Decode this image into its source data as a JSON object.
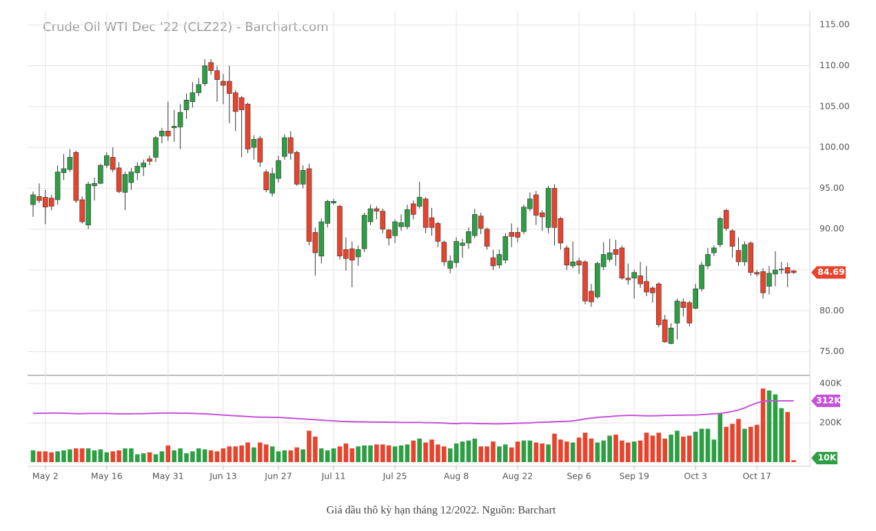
{
  "chart_data": {
    "type": "candlestick",
    "title": "Crude Oil WTI Dec '22 (CLZ22) - Barchart.com",
    "caption": "Giá dầu thô kỳ hạn tháng 12/2022. Nguồn: Barchart",
    "categories": [
      null,
      null,
      "May 2",
      null,
      null,
      null,
      null,
      null,
      null,
      null,
      null,
      null,
      "May 16",
      null,
      null,
      null,
      null,
      null,
      null,
      null,
      null,
      null,
      "May 31",
      null,
      null,
      null,
      null,
      null,
      null,
      null,
      null,
      "Jun 13",
      null,
      null,
      null,
      null,
      null,
      null,
      null,
      null,
      "Jun 27",
      null,
      null,
      null,
      null,
      null,
      null,
      null,
      null,
      "Jul 11",
      null,
      null,
      null,
      null,
      null,
      null,
      null,
      null,
      null,
      "Jul 25",
      null,
      null,
      null,
      null,
      null,
      null,
      null,
      null,
      null,
      "Aug 8",
      null,
      null,
      null,
      null,
      null,
      null,
      null,
      null,
      null,
      "Aug 22",
      null,
      null,
      null,
      null,
      null,
      null,
      null,
      null,
      null,
      "Sep 6",
      null,
      null,
      null,
      null,
      null,
      null,
      null,
      null,
      "Sep 19",
      null,
      null,
      null,
      null,
      null,
      null,
      null,
      null,
      null,
      "Oct 3",
      null,
      null,
      null,
      null,
      null,
      null,
      null,
      null,
      null,
      "Oct 17",
      null,
      null,
      null,
      null,
      null,
      null
    ],
    "open": [
      93.0,
      94.0,
      93.9,
      93.8,
      93.6,
      96.9,
      97.3,
      99.4,
      93.6,
      90.5,
      95.3,
      95.6,
      97.8,
      98.8,
      97.5,
      94.5,
      95.7,
      96.9,
      97.6,
      98.6,
      98.8,
      101.4,
      102.0,
      102.4,
      102.5,
      104.6,
      105.6,
      106.7,
      107.8,
      110.4,
      109.4,
      108.1,
      108.1,
      106.7,
      106.1,
      105.3,
      100.0,
      101.1,
      97.0,
      94.4,
      96.2,
      98.9,
      101.2,
      99.4,
      95.5,
      97.4,
      89.6,
      86.7,
      90.7,
      93.2,
      92.8,
      87.5,
      87.6,
      86.6,
      87.6,
      90.9,
      92.5,
      92.2,
      89.9,
      89.2,
      90.3,
      90.3,
      93.1,
      92.8,
      93.7,
      91.4,
      90.7,
      88.4,
      85.2,
      85.9,
      88.0,
      88.3,
      89.2,
      91.6,
      90.0,
      86.5,
      85.6,
      86.2,
      89.6,
      89.6,
      89.7,
      92.5,
      94.2,
      92.0,
      90.2,
      95.0,
      91.3,
      87.7,
      85.5,
      86.1,
      86.0,
      82.4,
      81.7,
      85.4,
      86.3,
      87.5,
      87.7,
      84.0,
      84.0,
      84.3,
      83.6,
      82.8,
      83.3,
      78.9,
      76.0,
      78.5,
      81.1,
      81.0,
      80.3,
      82.7,
      85.5,
      87.1,
      88.1,
      92.3,
      89.8,
      87.4,
      86.0,
      88.3,
      84.7,
      84.8,
      83.0,
      84.5,
      85.0,
      85.3,
      84.9
    ],
    "high": [
      94.6,
      95.6,
      94.8,
      94.2,
      97.8,
      99.2,
      99.8,
      99.6,
      94.0,
      95.8,
      96.3,
      98.0,
      99.4,
      100.0,
      98.2,
      97.0,
      97.5,
      98.2,
      98.5,
      99.0,
      101.4,
      102.4,
      105.6,
      104.6,
      105.3,
      106.6,
      108.0,
      108.5,
      110.8,
      110.8,
      110.0,
      109.0,
      110.0,
      107.0,
      106.3,
      105.5,
      101.5,
      101.4,
      97.3,
      97.5,
      99.0,
      101.6,
      102.0,
      99.6,
      97.8,
      98.0,
      90.2,
      91.3,
      93.6,
      93.7,
      93.0,
      89.0,
      88.5,
      88.0,
      92.0,
      93.0,
      92.8,
      92.5,
      90.0,
      91.2,
      91.8,
      93.0,
      93.5,
      95.8,
      93.9,
      92.6,
      90.9,
      88.6,
      86.8,
      89.0,
      88.8,
      90.2,
      92.5,
      92.0,
      90.2,
      87.5,
      87.5,
      89.5,
      90.7,
      90.2,
      93.0,
      94.5,
      94.7,
      92.3,
      95.3,
      95.5,
      91.5,
      88.0,
      88.5,
      86.5,
      86.2,
      83.3,
      86.0,
      88.4,
      88.8,
      88.7,
      88.0,
      85.8,
      85.0,
      86.0,
      85.5,
      83.0,
      83.5,
      79.5,
      78.5,
      81.5,
      81.5,
      81.2,
      83.3,
      86.0,
      87.7,
      88.0,
      91.5,
      92.5,
      90.0,
      89.0,
      88.5,
      88.5,
      85.0,
      85.2,
      85.5,
      87.3,
      86.0,
      85.9,
      85.0
    ],
    "low": [
      91.5,
      93.2,
      90.6,
      92.3,
      93.0,
      96.0,
      97.0,
      93.2,
      90.7,
      90.0,
      93.5,
      95.5,
      97.5,
      97.0,
      94.4,
      92.3,
      94.8,
      96.0,
      96.5,
      97.8,
      98.2,
      100.5,
      100.8,
      100.7,
      99.8,
      103.5,
      104.9,
      106.3,
      107.5,
      108.9,
      105.6,
      105.3,
      103.0,
      102.0,
      98.8,
      99.3,
      98.5,
      97.6,
      94.5,
      94.0,
      95.7,
      98.5,
      98.5,
      95.3,
      95.0,
      88.0,
      84.3,
      85.8,
      90.2,
      93.0,
      86.3,
      84.9,
      82.9,
      85.5,
      87.2,
      90.5,
      91.2,
      89.5,
      88.0,
      88.3,
      89.8,
      90.0,
      91.2,
      92.5,
      89.5,
      89.2,
      87.8,
      85.5,
      84.6,
      85.3,
      86.5,
      87.6,
      88.9,
      89.4,
      87.5,
      85.0,
      85.2,
      85.8,
      87.8,
      88.4,
      89.4,
      92.2,
      90.5,
      89.8,
      89.5,
      88.0,
      87.5,
      85.0,
      85.2,
      84.5,
      80.8,
      80.5,
      81.5,
      85.0,
      86.0,
      85.5,
      83.8,
      83.2,
      81.5,
      82.8,
      81.8,
      81.0,
      78.0,
      76.1,
      75.9,
      76.5,
      79.3,
      78.1,
      80.2,
      82.4,
      85.1,
      86.7,
      87.8,
      89.8,
      86.5,
      85.5,
      85.5,
      84.3,
      84.2,
      81.5,
      82.0,
      83.0,
      84.5,
      82.9,
      84.5
    ],
    "close": [
      94.2,
      93.5,
      92.7,
      92.8,
      97.0,
      97.4,
      98.8,
      93.5,
      90.9,
      95.5,
      95.6,
      97.8,
      99.0,
      97.3,
      94.6,
      96.7,
      97.0,
      97.7,
      98.1,
      98.3,
      101.2,
      102.0,
      101.4,
      102.6,
      104.3,
      105.8,
      106.7,
      107.7,
      110.0,
      109.4,
      108.3,
      107.6,
      106.6,
      104.4,
      104.6,
      99.8,
      101.0,
      98.2,
      94.8,
      96.8,
      98.4,
      101.2,
      99.3,
      95.5,
      97.2,
      88.5,
      87.1,
      90.9,
      93.4,
      93.4,
      86.7,
      86.4,
      86.2,
      87.5,
      91.7,
      92.5,
      92.2,
      90.0,
      88.9,
      90.9,
      90.8,
      92.4,
      91.8,
      93.9,
      90.2,
      90.2,
      88.5,
      86.0,
      86.1,
      88.5,
      88.3,
      89.7,
      91.8,
      90.1,
      87.9,
      85.5,
      86.9,
      89.1,
      89.1,
      89.0,
      92.7,
      93.7,
      91.7,
      91.5,
      95.0,
      90.2,
      88.3,
      85.6,
      86.0,
      85.6,
      81.2,
      81.1,
      85.8,
      86.9,
      87.1,
      86.9,
      84.0,
      83.8,
      84.7,
      83.3,
      82.3,
      82.2,
      78.3,
      76.2,
      77.9,
      81.2,
      80.4,
      78.5,
      82.7,
      85.6,
      86.9,
      87.7,
      91.3,
      90.1,
      87.9,
      86.0,
      88.1,
      84.7,
      84.5,
      82.2,
      84.6,
      85.0,
      85.1,
      84.6,
      84.69
    ],
    "volume": [
      60000,
      55000,
      55000,
      50000,
      55000,
      60000,
      65000,
      70000,
      70000,
      70000,
      60000,
      65000,
      50000,
      55000,
      60000,
      70000,
      70000,
      40000,
      45000,
      50000,
      40000,
      55000,
      85000,
      60000,
      70000,
      45000,
      55000,
      70000,
      65000,
      60000,
      55000,
      70000,
      80000,
      80000,
      85000,
      100000,
      75000,
      100000,
      90000,
      80000,
      55000,
      60000,
      60000,
      75000,
      65000,
      160000,
      130000,
      70000,
      60000,
      70000,
      80000,
      95000,
      70000,
      80000,
      85000,
      85000,
      90000,
      90000,
      85000,
      80000,
      85000,
      90000,
      110000,
      120000,
      100000,
      115000,
      90000,
      80000,
      70000,
      95000,
      105000,
      110000,
      120000,
      80000,
      80000,
      105000,
      80000,
      90000,
      75000,
      105000,
      110000,
      110000,
      100000,
      95000,
      90000,
      145000,
      115000,
      105000,
      100000,
      125000,
      150000,
      120000,
      100000,
      110000,
      135000,
      140000,
      110000,
      100000,
      105000,
      110000,
      150000,
      135000,
      150000,
      120000,
      140000,
      160000,
      130000,
      135000,
      155000,
      170000,
      170000,
      115000,
      250000,
      180000,
      195000,
      220000,
      170000,
      180000,
      190000,
      375000,
      365000,
      345000,
      275000,
      255000,
      10000
    ],
    "volume_ma": [
      248000,
      249000,
      249000,
      250000,
      250000,
      249000,
      248000,
      247000,
      247000,
      248000,
      248000,
      248000,
      248000,
      247000,
      246000,
      246000,
      246000,
      247000,
      247000,
      248000,
      249000,
      250000,
      250000,
      250000,
      249000,
      249000,
      248000,
      247000,
      246000,
      244000,
      242000,
      240000,
      238000,
      236000,
      234000,
      232000,
      230000,
      229000,
      229000,
      228000,
      228000,
      226000,
      224000,
      222000,
      220000,
      218000,
      216000,
      214000,
      212000,
      210000,
      208000,
      207000,
      206000,
      205000,
      205000,
      204000,
      204000,
      204000,
      203000,
      203000,
      202000,
      202000,
      202000,
      202000,
      201000,
      201000,
      200000,
      199000,
      197000,
      196000,
      198000,
      198000,
      197000,
      196000,
      196000,
      195000,
      195000,
      196000,
      197000,
      198000,
      199000,
      200000,
      202000,
      203000,
      204000,
      206000,
      207000,
      208000,
      210000,
      215000,
      220000,
      224000,
      228000,
      230000,
      232000,
      235000,
      237000,
      238000,
      238000,
      237000,
      236000,
      236000,
      237000,
      238000,
      238000,
      239000,
      239000,
      240000,
      240000,
      242000,
      244000,
      246000,
      248000,
      252000,
      258000,
      266000,
      276000,
      290000,
      302000,
      310000,
      312000,
      312000,
      312000,
      312000,
      312000
    ],
    "volume_ma_last_label": "312K",
    "volume_last_label": "10K",
    "ylim": [
      72.1,
      116.7
    ],
    "yticks": [
      {
        "value": 75,
        "label": "75.00"
      },
      {
        "value": 80,
        "label": "80.00"
      },
      {
        "value": 85,
        "label": "85.00"
      },
      {
        "value": 90,
        "label": "90.00"
      },
      {
        "value": 95,
        "label": "95.00"
      },
      {
        "value": 100,
        "label": "100.00"
      },
      {
        "value": 105,
        "label": "105.00"
      },
      {
        "value": 110,
        "label": "110.00"
      },
      {
        "value": 115,
        "label": "115.00"
      }
    ],
    "volume_ylim": [
      0,
      442000
    ],
    "volume_yticks": [
      {
        "value": 200000,
        "label": "200K"
      },
      {
        "value": 400000,
        "label": "400K"
      }
    ],
    "up_color": "#2e9e44",
    "down_color": "#e8432c",
    "ma_color": "#c451d8",
    "grid": true
  }
}
